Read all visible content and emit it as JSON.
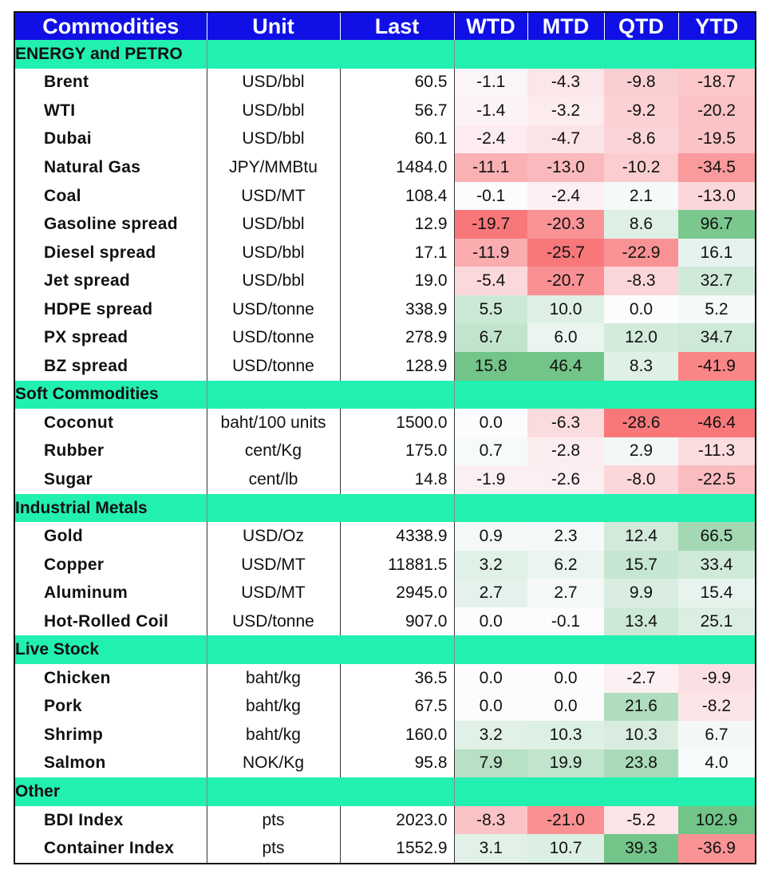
{
  "headers": [
    "Commodities",
    "Unit",
    "Last",
    "WTD",
    "MTD",
    "QTD",
    "YTD"
  ],
  "sections": [
    {
      "name": "ENERGY and PETRO",
      "rows": [
        {
          "name": "Brent",
          "unit": "USD/bbl",
          "last": "60.5",
          "wtd": "-1.1",
          "mtd": "-4.3",
          "qtd": "-9.8",
          "ytd": "-18.7"
        },
        {
          "name": "WTI",
          "unit": "USD/bbl",
          "last": "56.7",
          "wtd": "-1.4",
          "mtd": "-3.2",
          "qtd": "-9.2",
          "ytd": "-20.2"
        },
        {
          "name": "Dubai",
          "unit": "USD/bbl",
          "last": "60.1",
          "wtd": "-2.4",
          "mtd": "-4.7",
          "qtd": "-8.6",
          "ytd": "-19.5"
        },
        {
          "name": "Natural Gas",
          "unit": "JPY/MMBtu",
          "last": "1484.0",
          "wtd": "-11.1",
          "mtd": "-13.0",
          "qtd": "-10.2",
          "ytd": "-34.5"
        },
        {
          "name": "Coal",
          "unit": "USD/MT",
          "last": "108.4",
          "wtd": "-0.1",
          "mtd": "-2.4",
          "qtd": "2.1",
          "ytd": "-13.0"
        },
        {
          "name": "Gasoline spread",
          "unit": "USD/bbl",
          "last": "12.9",
          "wtd": "-19.7",
          "mtd": "-20.3",
          "qtd": "8.6",
          "ytd": "96.7"
        },
        {
          "name": "Diesel spread",
          "unit": "USD/bbl",
          "last": "17.1",
          "wtd": "-11.9",
          "mtd": "-25.7",
          "qtd": "-22.9",
          "ytd": "16.1"
        },
        {
          "name": "Jet spread",
          "unit": "USD/bbl",
          "last": "19.0",
          "wtd": "-5.4",
          "mtd": "-20.7",
          "qtd": "-8.3",
          "ytd": "32.7"
        },
        {
          "name": "HDPE spread",
          "unit": "USD/tonne",
          "last": "338.9",
          "wtd": "5.5",
          "mtd": "10.0",
          "qtd": "0.0",
          "ytd": "5.2"
        },
        {
          "name": "PX spread",
          "unit": "USD/tonne",
          "last": "278.9",
          "wtd": "6.7",
          "mtd": "6.0",
          "qtd": "12.0",
          "ytd": "34.7"
        },
        {
          "name": "BZ spread",
          "unit": "USD/tonne",
          "last": "128.9",
          "wtd": "15.8",
          "mtd": "46.4",
          "qtd": "8.3",
          "ytd": "-41.9"
        }
      ]
    },
    {
      "name": "Soft Commodities",
      "rows": [
        {
          "name": "Coconut",
          "unit": "baht/100 units",
          "last": "1500.0",
          "wtd": "0.0",
          "mtd": "-6.3",
          "qtd": "-28.6",
          "ytd": "-46.4"
        },
        {
          "name": "Rubber",
          "unit": "cent/Kg",
          "last": "175.0",
          "wtd": "0.7",
          "mtd": "-2.8",
          "qtd": "2.9",
          "ytd": "-11.3"
        },
        {
          "name": "Sugar",
          "unit": "cent/lb",
          "last": "14.8",
          "wtd": "-1.9",
          "mtd": "-2.6",
          "qtd": "-8.0",
          "ytd": "-22.5"
        }
      ]
    },
    {
      "name": "Industrial Metals",
      "rows": [
        {
          "name": "Gold",
          "unit": "USD/Oz",
          "last": "4338.9",
          "wtd": "0.9",
          "mtd": "2.3",
          "qtd": "12.4",
          "ytd": "66.5"
        },
        {
          "name": "Copper",
          "unit": "USD/MT",
          "last": "11881.5",
          "wtd": "3.2",
          "mtd": "6.2",
          "qtd": "15.7",
          "ytd": "33.4"
        },
        {
          "name": "Aluminum",
          "unit": "USD/MT",
          "last": "2945.0",
          "wtd": "2.7",
          "mtd": "2.7",
          "qtd": "9.9",
          "ytd": "15.4"
        },
        {
          "name": "Hot-Rolled Coil",
          "unit": "USD/tonne",
          "last": "907.0",
          "wtd": "0.0",
          "mtd": "-0.1",
          "qtd": "13.4",
          "ytd": "25.1"
        }
      ]
    },
    {
      "name": "Live Stock",
      "rows": [
        {
          "name": "Chicken",
          "unit": "baht/kg",
          "last": "36.5",
          "wtd": "0.0",
          "mtd": "0.0",
          "qtd": "-2.7",
          "ytd": "-9.9"
        },
        {
          "name": "Pork",
          "unit": "baht/kg",
          "last": "67.5",
          "wtd": "0.0",
          "mtd": "0.0",
          "qtd": "21.6",
          "ytd": "-8.2"
        },
        {
          "name": "Shrimp",
          "unit": "baht/kg",
          "last": "160.0",
          "wtd": "3.2",
          "mtd": "10.3",
          "qtd": "10.3",
          "ytd": "6.7"
        },
        {
          "name": "Salmon",
          "unit": "NOK/Kg",
          "last": "95.8",
          "wtd": "7.9",
          "mtd": "19.9",
          "qtd": "23.8",
          "ytd": "4.0"
        }
      ]
    },
    {
      "name": "Other",
      "rows": [
        {
          "name": "BDI Index",
          "unit": "pts",
          "last": "2023.0",
          "wtd": "-8.3",
          "mtd": "-21.0",
          "qtd": "-5.2",
          "ytd": "102.9"
        },
        {
          "name": "Container Index",
          "unit": "pts",
          "last": "1552.9",
          "wtd": "3.1",
          "mtd": "10.7",
          "qtd": "39.3",
          "ytd": "-36.9"
        }
      ]
    }
  ],
  "colors": {
    "header_bg": "#1010e6",
    "section_bg": "#22f0b0",
    "negative": "#f8696b",
    "positive": "#63be7b",
    "neutral": "#fcfcff"
  }
}
